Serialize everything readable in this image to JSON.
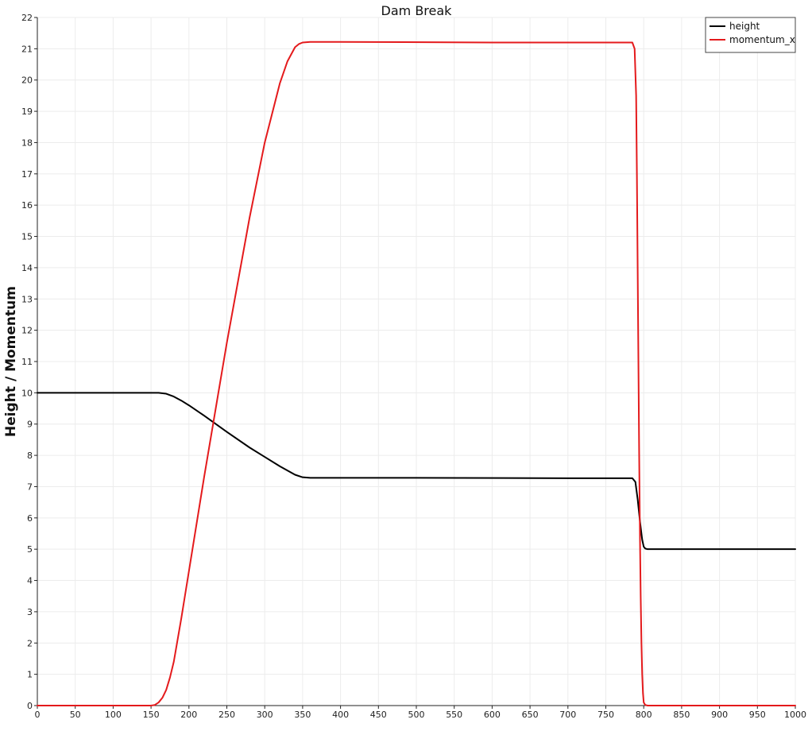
{
  "chart_data": {
    "type": "line",
    "title": "Dam Break",
    "xlabel": "",
    "ylabel": "Height / Momentum",
    "xlim": [
      0,
      1000
    ],
    "ylim": [
      0,
      22
    ],
    "x_ticks": [
      0,
      50,
      100,
      150,
      200,
      250,
      300,
      350,
      400,
      450,
      500,
      550,
      600,
      650,
      700,
      750,
      800,
      850,
      900,
      950,
      1000
    ],
    "y_ticks": [
      0,
      1,
      2,
      3,
      4,
      5,
      6,
      7,
      8,
      9,
      10,
      11,
      12,
      13,
      14,
      15,
      16,
      17,
      18,
      19,
      20,
      21,
      22
    ],
    "grid": true,
    "legend_position": "top-right",
    "series": [
      {
        "name": "height",
        "color": "#000000",
        "x": [
          0,
          100,
          150,
          160,
          170,
          180,
          190,
          200,
          220,
          250,
          280,
          300,
          320,
          340,
          350,
          360,
          380,
          500,
          700,
          785,
          789,
          792,
          795,
          798,
          800,
          802,
          805,
          850,
          1000
        ],
        "y": [
          10,
          10,
          10,
          10,
          9.97,
          9.88,
          9.75,
          9.6,
          9.27,
          8.75,
          8.25,
          7.95,
          7.65,
          7.38,
          7.3,
          7.28,
          7.28,
          7.28,
          7.27,
          7.27,
          7.15,
          6.6,
          5.9,
          5.3,
          5.08,
          5.02,
          5.0,
          5.0,
          5.0
        ]
      },
      {
        "name": "momentum_x",
        "color": "#e41a1c",
        "x": [
          0,
          150,
          155,
          160,
          165,
          170,
          175,
          180,
          190,
          200,
          220,
          250,
          280,
          300,
          320,
          330,
          340,
          345,
          350,
          360,
          400,
          600,
          785,
          788,
          790,
          791,
          792,
          793,
          794,
          795,
          796,
          797,
          798,
          799,
          800,
          802,
          805,
          1000
        ],
        "y": [
          0,
          0,
          0.02,
          0.1,
          0.25,
          0.5,
          0.9,
          1.4,
          2.8,
          4.3,
          7.3,
          11.6,
          15.6,
          18.0,
          19.9,
          20.6,
          21.05,
          21.15,
          21.2,
          21.22,
          21.22,
          21.2,
          21.2,
          21.0,
          19.5,
          17.0,
          14.0,
          11.0,
          8.0,
          5.5,
          3.5,
          2.0,
          1.0,
          0.4,
          0.1,
          0.02,
          0,
          0
        ]
      }
    ]
  }
}
